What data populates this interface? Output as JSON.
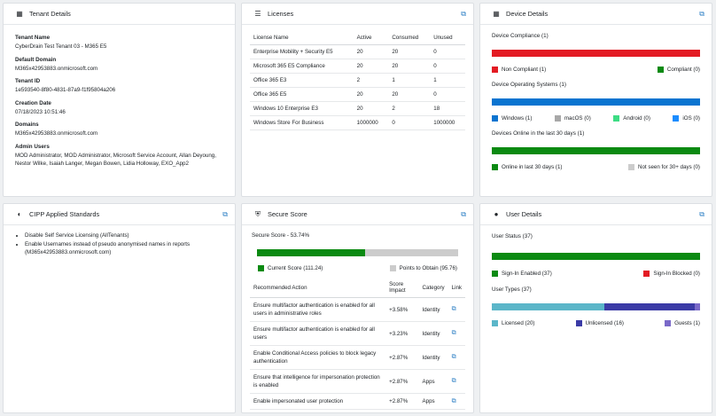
{
  "tenant": {
    "title": "Tenant Details",
    "fields": [
      {
        "label": "Tenant Name",
        "value": "CyberDrain Test Tenant 03 - M365 E5"
      },
      {
        "label": "Default Domain",
        "value": "M365x42953883.onmicrosoft.com"
      },
      {
        "label": "Tenant ID",
        "value": "1e593540-8f80-4831-87a9-f1f95804a206"
      },
      {
        "label": "Creation Date",
        "value": "07/18/2023 10:51:46"
      },
      {
        "label": "Domains",
        "value": "M365x42953883.onmicrosoft.com"
      },
      {
        "label": "Admin Users",
        "value": "MOD Administrator, MOD Administrator, Microsoft Service Account, Allan Deyoung, Nestor Wilke, Isaiah Langer, Megan Bowen, Lidia Holloway, EXO_App2"
      }
    ]
  },
  "licenses": {
    "title": "Licenses",
    "headers": [
      "License Name",
      "Active",
      "Consumed",
      "Unused"
    ],
    "rows": [
      [
        "Enterprise Mobility + Security E5",
        "20",
        "20",
        "0"
      ],
      [
        "Microsoft 365 E5 Compliance",
        "20",
        "20",
        "0"
      ],
      [
        "Office 365 E3",
        "2",
        "1",
        "1"
      ],
      [
        "Office 365 E5",
        "20",
        "20",
        "0"
      ],
      [
        "Windows 10 Enterprise E3",
        "20",
        "2",
        "18"
      ],
      [
        "Windows Store For Business",
        "1000000",
        "0",
        "1000000"
      ]
    ]
  },
  "device": {
    "title": "Device Details",
    "compliance_label": "Device Compliance (1)",
    "compliance_legend": [
      {
        "label": "Non Compliant (1)",
        "color": "#e31b23"
      },
      {
        "label": "Compliant (0)",
        "color": "#0b8a12"
      }
    ],
    "os_label": "Device Operating Systems (1)",
    "os_legend": [
      {
        "label": "Windows (1)",
        "color": "#0a74d0"
      },
      {
        "label": "macOS (0)",
        "color": "#a8a8a8"
      },
      {
        "label": "Android (0)",
        "color": "#3ddc84"
      },
      {
        "label": "iOS (0)",
        "color": "#1a8cff"
      }
    ],
    "online_label": "Devices Online in the last 30 days (1)",
    "online_legend": [
      {
        "label": "Online in last 30 days (1)",
        "color": "#0b8a12"
      },
      {
        "label": "Not seen for 30+ days (0)",
        "color": "#cccccc"
      }
    ]
  },
  "standards": {
    "title": "CIPP Applied Standards",
    "items": [
      "Disable Self Service Licensing (AllTenants)",
      "Enable Usernames instead of pseudo anonymised names in reports (M365x42953883.onmicrosoft.com)"
    ]
  },
  "secure": {
    "title": "Secure Score",
    "score_label": "Secure Score - 53.74%",
    "score_fraction": 0.5374,
    "legend": [
      {
        "label": "Current Score (111.24)",
        "color": "#0b8a12"
      },
      {
        "label": "Points to Obtain (95.76)",
        "color": "#cccccc"
      }
    ],
    "headers": [
      "Recommended Action",
      "Score Impact",
      "Category",
      "Link"
    ],
    "rows": [
      [
        "Ensure multifactor authentication is enabled for all users in administrative roles",
        "+3.58%",
        "Identity"
      ],
      [
        "Ensure multifactor authentication is enabled for all users",
        "+3.23%",
        "Identity"
      ],
      [
        "Enable Conditional Access policies to block legacy authentication",
        "+2.87%",
        "Identity"
      ],
      [
        "Ensure that intelligence for impersonation protection is enabled",
        "+2.87%",
        "Apps"
      ],
      [
        "Enable impersonated user protection",
        "+2.87%",
        "Apps"
      ]
    ]
  },
  "users": {
    "title": "User Details",
    "status_label": "User Status (37)",
    "status_legend": [
      {
        "label": "Sign-In Enabled (37)",
        "color": "#0b8a12"
      },
      {
        "label": "Sign-In Blocked (0)",
        "color": "#e31b23"
      }
    ],
    "types_label": "User Types (37)",
    "types_legend": [
      {
        "label": "Licensed (20)",
        "color": "#5bb6c9"
      },
      {
        "label": "Unlicensed (16)",
        "color": "#3b3ba6"
      },
      {
        "label": "Guests (1)",
        "color": "#7a69c9"
      }
    ]
  }
}
